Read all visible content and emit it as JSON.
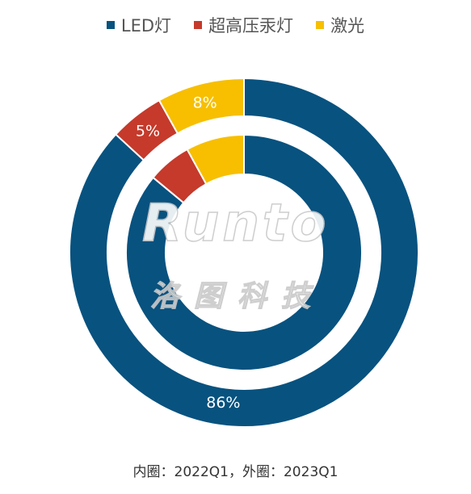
{
  "legend": [
    {
      "label": "LED灯",
      "color": "#08527f"
    },
    {
      "label": "超高压汞灯",
      "color": "#c53a2b"
    },
    {
      "label": "激光",
      "color": "#f7bf00"
    }
  ],
  "chart_data": {
    "type": "pie",
    "subtype": "double-donut",
    "categories": [
      "LED灯",
      "超高压汞灯",
      "激光"
    ],
    "series": [
      {
        "ring": "inner",
        "values": [
          86,
          6,
          8
        ]
      },
      {
        "ring": "outer",
        "values": [
          86,
          5,
          8
        ],
        "labels": [
          "86%",
          "5%",
          "8%"
        ]
      }
    ],
    "colors": [
      "#08527f",
      "#c53a2b",
      "#f7bf00"
    ],
    "caption": "内圈：2022Q1，外圈：2023Q1"
  },
  "watermark": {
    "latin": "Runto",
    "cjk": "洛图科技"
  }
}
